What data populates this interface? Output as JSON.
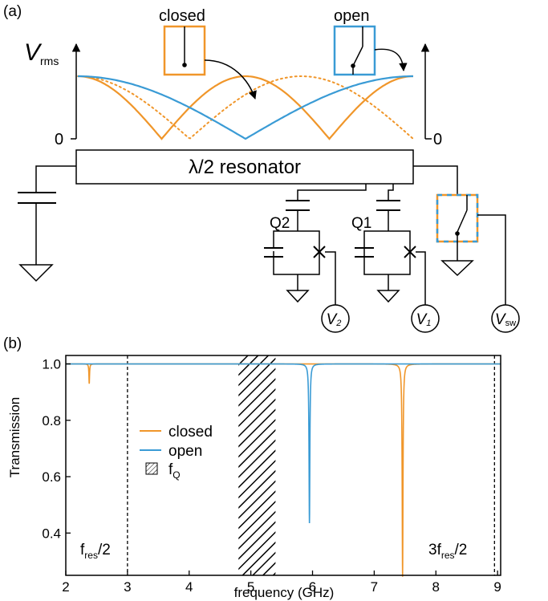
{
  "panel_a": {
    "label": "(a)",
    "v_label": "V",
    "v_sub": "rms",
    "zero_left": "0",
    "zero_right": "0",
    "closed_label": "closed",
    "open_label": "open",
    "resonator_label": "λ/2 resonator",
    "q2_label": "Q2",
    "q1_label": "Q1",
    "v2_main": "V",
    "v2_sub": "2",
    "v1_main": "V",
    "v1_sub": "1",
    "vsw_main": "V",
    "vsw_sub": "sw"
  },
  "panel_b": {
    "label": "(b)",
    "legend_closed": "closed",
    "legend_open": "open",
    "legend_fq_main": "f",
    "legend_fq_sub": "Q",
    "fres_half_main": "f",
    "fres_half_sub": "res",
    "fres_half_tail": "/2",
    "fres_3half_pre": "3f",
    "fres_3half_sub": "res",
    "fres_3half_tail": "/2"
  },
  "colors": {
    "closed": "#F0962A",
    "open": "#3A9BD5",
    "black": "#000000"
  },
  "chart_data": {
    "type": "line",
    "xlabel": "frequency (GHz)",
    "ylabel": "Transmission",
    "xlim": [
      2,
      9.05
    ],
    "ylim": [
      0.25,
      1.03
    ],
    "xticks": [
      2,
      3,
      4,
      5,
      6,
      7,
      8,
      9
    ],
    "yticks": [
      0.4,
      0.6,
      0.8,
      1.0
    ],
    "xtick_labels": [
      "2",
      "3",
      "4",
      "5",
      "6",
      "7",
      "8",
      "9"
    ],
    "ytick_labels": [
      "0.4",
      "0.6",
      "0.8",
      "1.0"
    ],
    "dashed_lines_x": [
      3.0,
      8.95
    ],
    "fQ_band": [
      4.8,
      5.4
    ],
    "series": [
      {
        "name": "closed",
        "color": "#F0962A",
        "baseline": 1.0,
        "dips": [
          {
            "f0": 2.38,
            "depth": 0.07,
            "width": 0.006
          },
          {
            "f0": 7.46,
            "depth": 0.755,
            "width": 0.008
          }
        ]
      },
      {
        "name": "open",
        "color": "#3A9BD5",
        "baseline": 1.0,
        "dips": [
          {
            "f0": 5.95,
            "depth": 0.565,
            "width": 0.008
          }
        ]
      }
    ]
  }
}
